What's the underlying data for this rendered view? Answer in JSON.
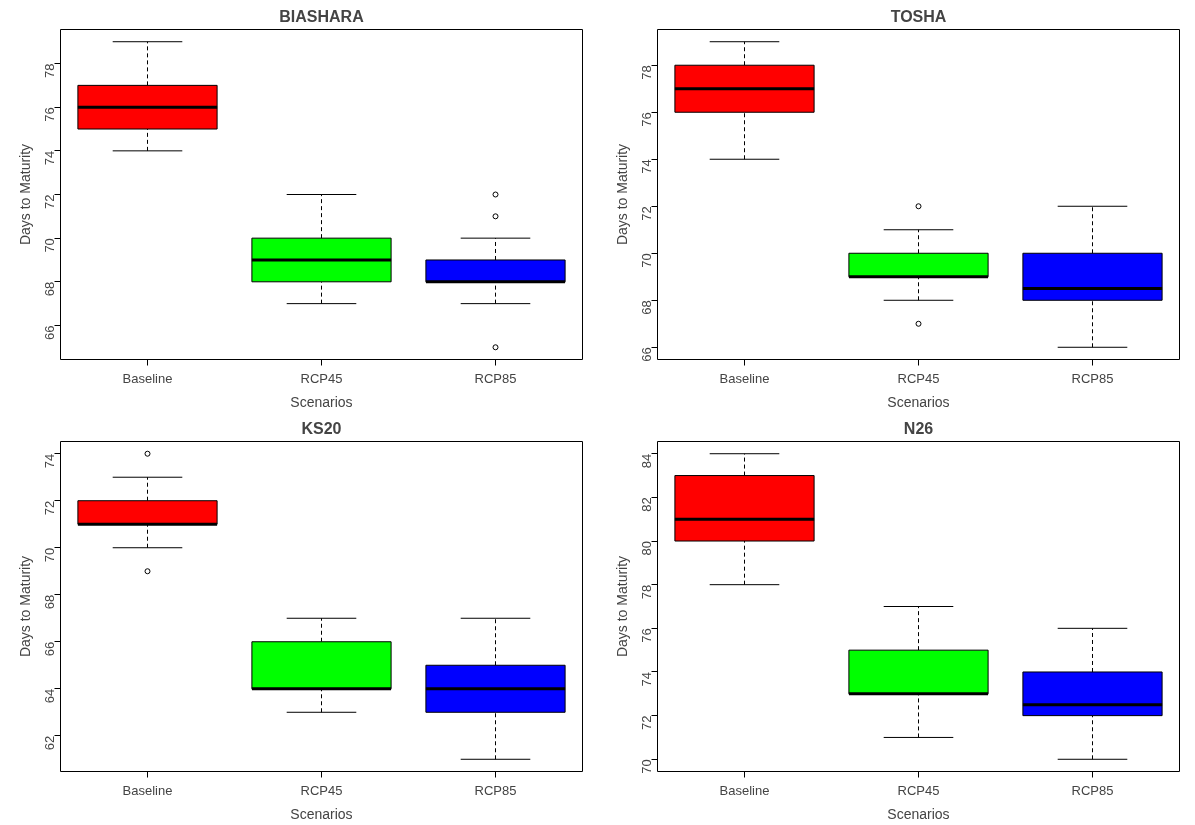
{
  "chart_data": [
    {
      "type": "box",
      "title": "BIASHARA",
      "xlabel": "Scenarios",
      "ylabel": "Days to Maturity",
      "categories": [
        "Baseline",
        "RCP45",
        "RCP85"
      ],
      "colors": [
        "#ff0000",
        "#00ff00",
        "#0000ff"
      ],
      "ylim": [
        64.44,
        79.56
      ],
      "yticks": [
        66,
        68,
        70,
        72,
        74,
        76,
        78
      ],
      "grid": false,
      "boxes": [
        {
          "low": 74,
          "q1": 75,
          "median": 76,
          "q3": 77,
          "high": 79
        },
        {
          "low": 67,
          "q1": 68,
          "median": 69,
          "q3": 70,
          "high": 72
        },
        {
          "low": 67,
          "q1": 68,
          "median": 68,
          "q3": 69,
          "high": 70,
          "outliers": [
            72,
            71,
            65
          ]
        }
      ]
    },
    {
      "type": "box",
      "title": "TOSHA",
      "xlabel": "Scenarios",
      "ylabel": "Days to Maturity",
      "categories": [
        "Baseline",
        "RCP45",
        "RCP85"
      ],
      "colors": [
        "#ff0000",
        "#00ff00",
        "#0000ff"
      ],
      "ylim": [
        65.48,
        79.52
      ],
      "yticks": [
        66,
        68,
        70,
        72,
        74,
        76,
        78
      ],
      "grid": false,
      "boxes": [
        {
          "low": 74,
          "q1": 76,
          "median": 77,
          "q3": 78,
          "high": 79
        },
        {
          "low": 68,
          "q1": 69,
          "median": 69,
          "q3": 70,
          "high": 71,
          "outliers": [
            72,
            67
          ]
        },
        {
          "low": 66,
          "q1": 68,
          "median": 68.5,
          "q3": 70,
          "high": 72
        }
      ]
    },
    {
      "type": "box",
      "title": "KS20",
      "xlabel": "Scenarios",
      "ylabel": "Days to Maturity",
      "categories": [
        "Baseline",
        "RCP45",
        "RCP85"
      ],
      "colors": [
        "#ff0000",
        "#00ff00",
        "#0000ff"
      ],
      "ylim": [
        60.48,
        74.52
      ],
      "yticks": [
        62,
        64,
        66,
        68,
        70,
        72,
        74
      ],
      "grid": false,
      "boxes": [
        {
          "low": 70,
          "q1": 71,
          "median": 71,
          "q3": 72,
          "high": 73,
          "outliers": [
            74,
            69
          ]
        },
        {
          "low": 63,
          "q1": 64,
          "median": 64,
          "q3": 66,
          "high": 67
        },
        {
          "low": 61,
          "q1": 63,
          "median": 64,
          "q3": 65,
          "high": 67
        }
      ]
    },
    {
      "type": "box",
      "title": "N26",
      "xlabel": "Scenarios",
      "ylabel": "Days to Maturity",
      "categories": [
        "Baseline",
        "RCP45",
        "RCP85"
      ],
      "colors": [
        "#ff0000",
        "#00ff00",
        "#0000ff"
      ],
      "ylim": [
        69.44,
        84.56
      ],
      "yticks": [
        70,
        72,
        74,
        76,
        78,
        80,
        82,
        84
      ],
      "grid": false,
      "boxes": [
        {
          "low": 78,
          "q1": 80,
          "median": 81,
          "q3": 83,
          "high": 84
        },
        {
          "low": 71,
          "q1": 73,
          "median": 73,
          "q3": 75,
          "high": 77
        },
        {
          "low": 70,
          "q1": 72,
          "median": 72.5,
          "q3": 74,
          "high": 76
        }
      ]
    }
  ]
}
